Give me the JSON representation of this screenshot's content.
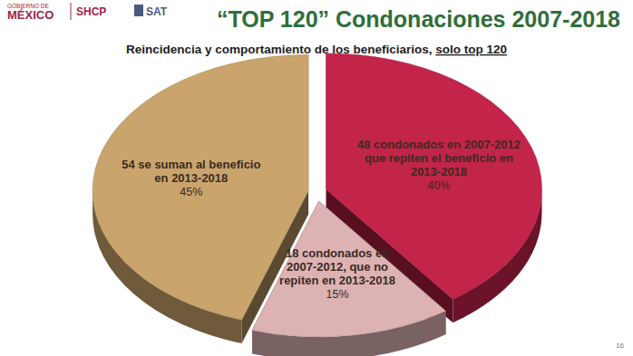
{
  "header": {
    "government": [
      "GOBIERNO DE",
      "MÉXICO"
    ],
    "agencies": [
      "SHCP",
      "SAT"
    ]
  },
  "page_number": 16,
  "chart_data": {
    "type": "pie",
    "title": "“TOP 120” Condonaciones 2007-2018",
    "subtitle": "Reincidencia y comportamiento de los beneficiarios, solo top 120",
    "categories": [
      "48 condonados en 2007-2012 que repiten el beneficio en 2013-2018",
      "18 condonados en 2007-2012, que no repiten en 2013-2018",
      "54 se suman al beneficio en 2013-2018"
    ],
    "values": [
      40,
      15,
      45
    ],
    "value_labels": [
      "40%",
      "15%",
      "45%"
    ],
    "colors": [
      "#c3244a",
      "#ddb2b3",
      "#c9a46c"
    ],
    "data_labels": true
  }
}
